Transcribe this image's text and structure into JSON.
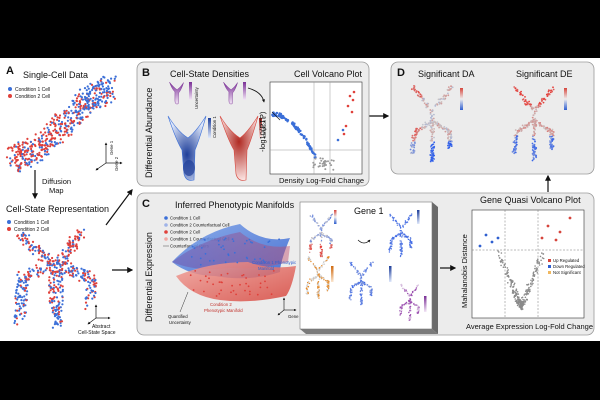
{
  "panels": {
    "A": {
      "letter": "A",
      "title": "Single-Cell Data",
      "legend": [
        "Condition 1 Cell",
        "Condition 2 Cell"
      ],
      "axis_gene1": "Gene 1",
      "axis_gene2": "Gene 2",
      "diffusion_label_1": "Diffusion",
      "diffusion_label_2": "Map",
      "rep_title": "Cell-State Representation",
      "abstract_1": "Abstract",
      "abstract_2": "Cell-State Space"
    },
    "B": {
      "letter": "B",
      "side_label": "Differential Abundance",
      "densities_title": "Cell-State Densities",
      "uncertainty": "Uncertainty",
      "cond1": "Condition 1",
      "cond2": "Condition 2",
      "volcano_title": "Cell Volcano Plot",
      "volcano_ylabel": "-log10(PTP)",
      "volcano_xlabel": "Density Log-Fold Change"
    },
    "C": {
      "letter": "C",
      "side_label": "Differential Expression",
      "manifolds_title": "Inferred Phenotypic Manifolds",
      "legend": [
        "Condition 1 Cell",
        "Condition 2 Counterfactual Cell",
        "Condition 2 Cell",
        "Condition 1 Counterfactual Cell",
        "Counterfactual Pairs"
      ],
      "manifold1_1": "Condition 1 Phenotypic",
      "manifold1_2": "Manifold",
      "manifold2_1": "Condition 2",
      "manifold2_2": "Phenotypic Manifold",
      "quantified_1": "Quantified",
      "quantified_2": "Uncertainty",
      "gene2": "Gene 2",
      "gene1_box_title": "Gene 1",
      "quasi_title": "Gene Quasi Volcano Plot",
      "quasi_ylabel": "Mahalanobis Distance",
      "quasi_xlabel": "Average Expression Log-Fold Change",
      "quasi_legend": [
        "Up Regulated",
        "Down Regulated",
        "Not Significant"
      ]
    },
    "D": {
      "letter": "D",
      "sig_da": "Significant DA",
      "sig_de": "Significant DE"
    }
  },
  "colors": {
    "cond1": "#3b6fd8",
    "cond2": "#e0403a",
    "panel_bg": "#ececec",
    "panel_border": "#9a9a9a",
    "purple": "#9b4fb0",
    "not_sig": "#9a9a9a"
  }
}
